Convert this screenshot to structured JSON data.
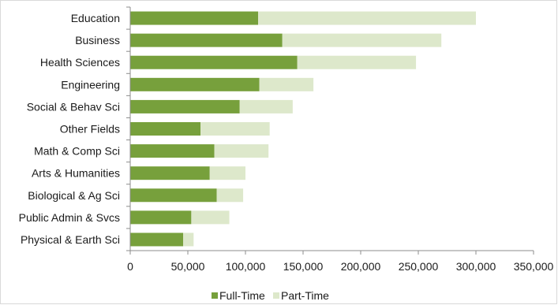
{
  "chart_data": {
    "type": "bar",
    "orientation": "horizontal",
    "stacked": true,
    "title": "",
    "xlabel": "",
    "ylabel": "",
    "categories": [
      "Education",
      "Business",
      "Health Sciences",
      "Engineering",
      "Social & Behav Sci",
      "Other Fields",
      "Math & Comp Sci",
      "Arts & Humanities",
      "Biological & Ag Sci",
      "Public Admin & Svcs",
      "Physical & Earth Sci"
    ],
    "series": [
      {
        "name": "Full-Time",
        "color": "#77a03c",
        "values": [
          111000,
          132000,
          145000,
          112000,
          95000,
          61000,
          73000,
          69000,
          75000,
          53000,
          46000
        ]
      },
      {
        "name": "Part-Time",
        "color": "#dde8cb",
        "values": [
          189000,
          138000,
          103000,
          47000,
          46000,
          60000,
          47000,
          31000,
          23000,
          33000,
          9000
        ]
      }
    ],
    "xlim": [
      0,
      350000
    ],
    "xticks": [
      0,
      50000,
      100000,
      150000,
      200000,
      250000,
      300000,
      350000
    ],
    "xtick_labels": [
      "0",
      "50,000",
      "100,000",
      "150,000",
      "200,000",
      "250,000",
      "300,000",
      "350,000"
    ],
    "grid": false,
    "legend_position": "bottom"
  }
}
